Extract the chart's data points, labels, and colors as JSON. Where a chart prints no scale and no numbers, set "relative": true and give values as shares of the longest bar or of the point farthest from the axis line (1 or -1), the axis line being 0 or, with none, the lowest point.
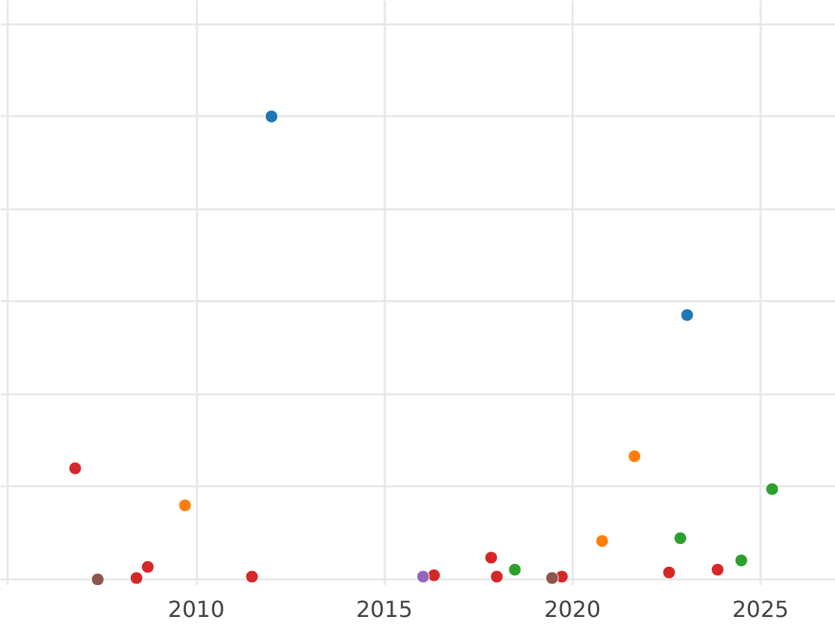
{
  "chart_data": {
    "type": "scatter",
    "relative": true,
    "xlim": [
      2004.8,
      2027
    ],
    "xticks": [
      {
        "value": 2005,
        "label": null
      },
      2010,
      2015,
      2020,
      2025
    ],
    "grid": true,
    "marker": "circle",
    "series": [
      {
        "color": "#1f77b4",
        "x": [
          2012.0,
          2023.05
        ],
        "values": [
          1.0,
          0.571
        ]
      },
      {
        "color": "#d62728",
        "x": [
          2006.78,
          2008.41,
          2008.71,
          2011.48,
          2016.32,
          2017.84,
          2017.99,
          2019.72,
          2022.57,
          2023.86
        ],
        "values": [
          0.24,
          0.003,
          0.027,
          0.006,
          0.009,
          0.047,
          0.006,
          0.006,
          0.015,
          0.021
        ]
      },
      {
        "color": "#ff7f0e",
        "x": [
          2009.7,
          2020.79,
          2021.65
        ],
        "values": [
          0.16,
          0.083,
          0.266
        ]
      },
      {
        "color": "#2ca02c",
        "x": [
          2018.47,
          2022.87,
          2024.49,
          2025.31
        ],
        "values": [
          0.021,
          0.089,
          0.041,
          0.195
        ]
      },
      {
        "color": "#9467bd",
        "x": [
          2016.03
        ],
        "values": [
          0.006
        ]
      },
      {
        "color": "#8c564b",
        "x": [
          2007.38,
          2019.46
        ],
        "values": [
          0.0,
          0.003
        ]
      }
    ]
  }
}
